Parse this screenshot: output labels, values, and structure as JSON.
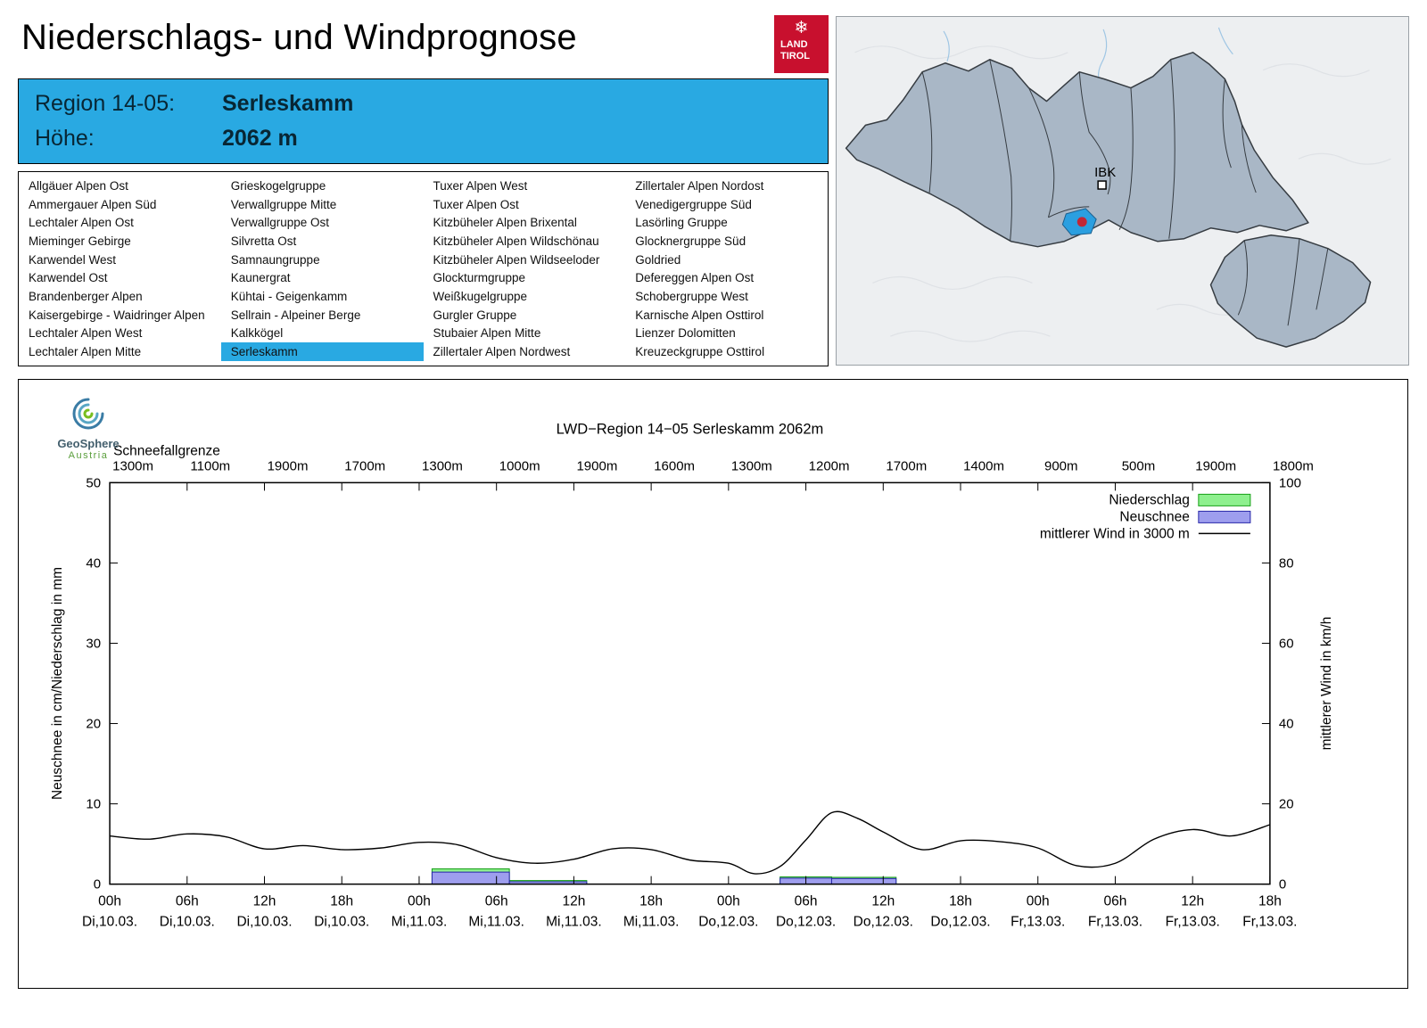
{
  "header": {
    "title": "Niederschlags- und Windprognose",
    "logo": {
      "snowflake": "❄",
      "land": "LAND",
      "tirol": "TIROL",
      "color": "#c8102e"
    }
  },
  "region_info": {
    "region_label": "Region 14-05:",
    "region_value": "Serleskamm",
    "altitude_label": "Höhe:",
    "altitude_value": "2062 m",
    "accent_color": "#29a9e2"
  },
  "region_list": {
    "selected": "Serleskamm",
    "items": [
      "Allgäuer Alpen Ost",
      "Ammergauer Alpen Süd",
      "Lechtaler Alpen Ost",
      "Mieminger Gebirge",
      "Karwendel West",
      "Karwendel Ost",
      "Brandenberger Alpen",
      "Kaisergebirge - Waidringer Alpen",
      "Lechtaler Alpen West",
      "Lechtaler Alpen Mitte",
      "Grieskogelgruppe",
      "Verwallgruppe Mitte",
      "Verwallgruppe Ost",
      "Silvretta Ost",
      "Samnaungruppe",
      "Kaunergrat",
      "Kühtai - Geigenkamm",
      "Sellrain - Alpeiner Berge",
      "Kalkkögel",
      "Serleskamm",
      "Tuxer Alpen West",
      "Tuxer Alpen Ost",
      "Kitzbüheler Alpen Brixental",
      "Kitzbüheler Alpen Wildschönau",
      "Kitzbüheler Alpen Wildseeloder",
      "Glockturmgruppe",
      "Weißkugelgruppe",
      "Gurgler Gruppe",
      "Stubaier Alpen Mitte",
      "Zillertaler Alpen Nordwest",
      "Zillertaler Alpen Nordost",
      "Venedigergruppe Süd",
      "Lasörling Gruppe",
      "Glocknergruppe Süd",
      "Goldried",
      "Defereggen Alpen Ost",
      "Schobergruppe West",
      "Karnische Alpen Osttirol",
      "Lienzer Dolomitten",
      "Kreuzeckgruppe Osttirol"
    ]
  },
  "map": {
    "city_label": "IBK",
    "region_fill": "#a9b7c6",
    "border_color": "#363c42",
    "selected_region_color": "#2b9fe0",
    "marker_color": "#c22736"
  },
  "geosphere": {
    "name": "GeoSphere",
    "country": "Austria"
  },
  "chart_data": {
    "type": "line+bar",
    "title": "LWD−Region 14−05 Serleskamm 2062m",
    "snowline": {
      "label": "Schneefallgrenze",
      "values": [
        "1300m",
        "1100m",
        "1900m",
        "1700m",
        "1300m",
        "1000m",
        "1900m",
        "1600m",
        "1300m",
        "1200m",
        "1700m",
        "1400m",
        "900m",
        "500m",
        "1900m",
        "1800m"
      ]
    },
    "ylabel_left": "Neuschnee in cm/Niederschlag in mm",
    "ylabel_right": "mittlerer Wind in km/h",
    "ylim_left": [
      0,
      50
    ],
    "ylim_right": [
      0,
      100
    ],
    "yticks_left": [
      0,
      10,
      20,
      30,
      40,
      50
    ],
    "yticks_right": [
      0,
      20,
      40,
      60,
      80,
      100
    ],
    "x_hours": [
      0,
      90
    ],
    "x_ticks": [
      {
        "h": "00h",
        "d": "Di,10.03."
      },
      {
        "h": "06h",
        "d": "Di,10.03."
      },
      {
        "h": "12h",
        "d": "Di,10.03."
      },
      {
        "h": "18h",
        "d": "Di,10.03."
      },
      {
        "h": "00h",
        "d": "Mi,11.03."
      },
      {
        "h": "06h",
        "d": "Mi,11.03."
      },
      {
        "h": "12h",
        "d": "Mi,11.03."
      },
      {
        "h": "18h",
        "d": "Mi,11.03."
      },
      {
        "h": "00h",
        "d": "Do,12.03."
      },
      {
        "h": "06h",
        "d": "Do,12.03."
      },
      {
        "h": "12h",
        "d": "Do,12.03."
      },
      {
        "h": "18h",
        "d": "Do,12.03."
      },
      {
        "h": "00h",
        "d": "Fr,13.03."
      },
      {
        "h": "06h",
        "d": "Fr,13.03."
      },
      {
        "h": "12h",
        "d": "Fr,13.03."
      },
      {
        "h": "18h",
        "d": "Fr,13.03."
      }
    ],
    "legend": [
      {
        "label": "Niederschlag",
        "type": "box",
        "fill": "#8ef08e",
        "stroke": "#16a016"
      },
      {
        "label": "Neuschnee",
        "type": "box",
        "fill": "#9e9eee",
        "stroke": "#2525a8"
      },
      {
        "label": "mittlerer Wind in 3000 m",
        "type": "line",
        "stroke": "#000000"
      }
    ],
    "wind_kmh": [
      [
        0,
        12
      ],
      [
        3,
        11.2
      ],
      [
        6,
        12.5
      ],
      [
        9,
        11.8
      ],
      [
        12,
        8.8
      ],
      [
        15,
        9.6
      ],
      [
        18,
        8.6
      ],
      [
        21,
        9
      ],
      [
        24,
        10.4
      ],
      [
        27,
        9.8
      ],
      [
        30,
        6.6
      ],
      [
        33,
        5.2
      ],
      [
        36,
        6.2
      ],
      [
        39,
        8.8
      ],
      [
        42,
        8.6
      ],
      [
        45,
        6
      ],
      [
        48,
        5.2
      ],
      [
        50,
        2.6
      ],
      [
        52,
        4.4
      ],
      [
        54,
        11
      ],
      [
        56,
        17.8
      ],
      [
        58,
        16.4
      ],
      [
        60,
        13
      ],
      [
        63,
        8.6
      ],
      [
        66,
        10.8
      ],
      [
        69,
        10.6
      ],
      [
        72,
        9
      ],
      [
        75,
        4.6
      ],
      [
        78,
        5.2
      ],
      [
        81,
        11.2
      ],
      [
        84,
        13.6
      ],
      [
        87,
        12
      ],
      [
        90,
        14.8
      ]
    ],
    "niederschlag_mm": [
      [
        25,
        31,
        1.9
      ],
      [
        31,
        37,
        0.45
      ],
      [
        52,
        56,
        0.9
      ],
      [
        56,
        61,
        0.85
      ]
    ],
    "neuschnee_cm": [
      [
        25,
        31,
        1.5
      ],
      [
        31,
        37,
        0.3
      ],
      [
        52,
        56,
        0.75
      ],
      [
        56,
        61,
        0.7
      ]
    ]
  }
}
